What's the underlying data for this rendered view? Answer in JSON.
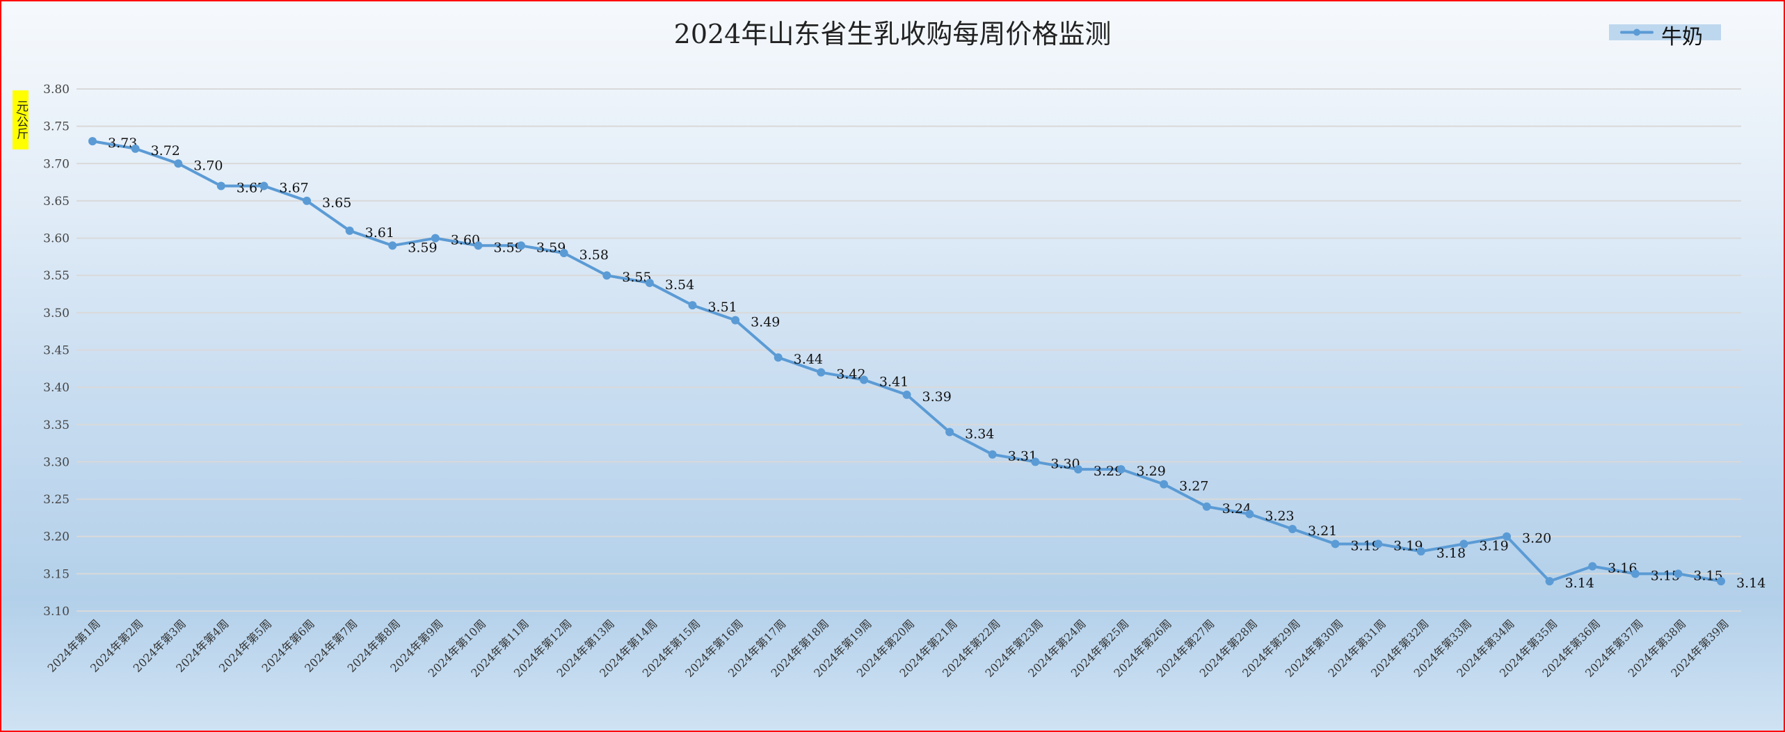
{
  "chart_data": {
    "type": "line",
    "title": "2024年山东省生乳收购每周价格监测",
    "ylabel": "元/公斤",
    "xlabel": "",
    "ylim": [
      3.1,
      3.8
    ],
    "yticks": [
      "3.10",
      "3.15",
      "3.20",
      "3.25",
      "3.30",
      "3.35",
      "3.40",
      "3.45",
      "3.50",
      "3.55",
      "3.60",
      "3.65",
      "3.70",
      "3.75",
      "3.80"
    ],
    "grid": true,
    "legend_position": "top-right",
    "categories": [
      "2024年第1周",
      "2024年第2周",
      "2024年第3周",
      "2024年第4周",
      "2024年第5周",
      "2024年第6周",
      "2024年第7周",
      "2024年第8周",
      "2024年第9周",
      "2024年第10周",
      "2024年第11周",
      "2024年第12周",
      "2024年第13周",
      "2024年第14周",
      "2024年第15周",
      "2024年第16周",
      "2024年第17周",
      "2024年第18周",
      "2024年第19周",
      "2024年第20周",
      "2024年第21周",
      "2024年第22周",
      "2024年第23周",
      "2024年第24周",
      "2024年第25周",
      "2024年第26周",
      "2024年第27周",
      "2024年第28周",
      "2024年第29周",
      "2024年第30周",
      "2024年第31周",
      "2024年第32周",
      "2024年第33周",
      "2024年第34周",
      "2024年第35周",
      "2024年第36周",
      "2024年第37周",
      "2024年第38周",
      "2024年第39周"
    ],
    "series": [
      {
        "name": "牛奶",
        "color": "#5b9bd5",
        "values": [
          3.73,
          3.72,
          3.7,
          3.67,
          3.67,
          3.65,
          3.61,
          3.59,
          3.6,
          3.59,
          3.59,
          3.58,
          3.55,
          3.54,
          3.51,
          3.49,
          3.44,
          3.42,
          3.41,
          3.39,
          3.34,
          3.31,
          3.3,
          3.29,
          3.29,
          3.27,
          3.24,
          3.23,
          3.21,
          3.19,
          3.19,
          3.18,
          3.19,
          3.2,
          3.14,
          3.16,
          3.15,
          3.15,
          3.14
        ]
      }
    ]
  }
}
